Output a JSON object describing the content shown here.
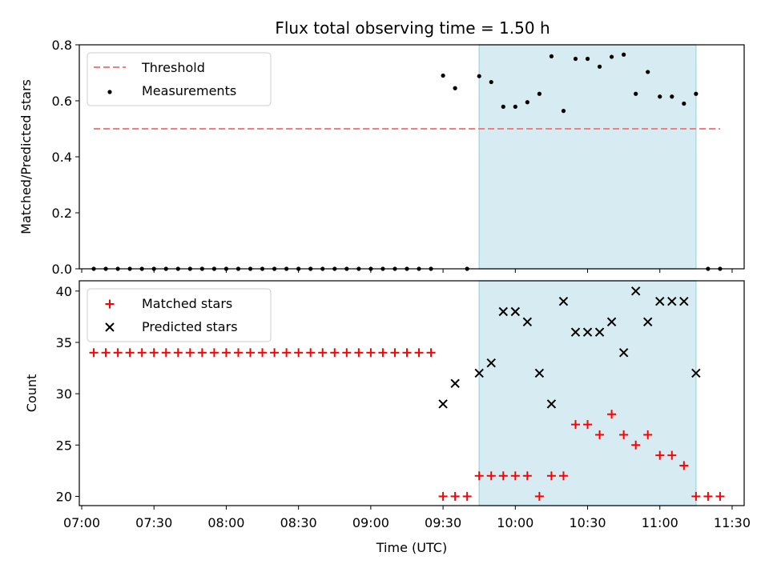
{
  "title": "Flux total observing time = 1.50 h",
  "colors": {
    "threshold": "#f08080",
    "measurement": "#000000",
    "matched": "#ff0000",
    "predicted": "#000000",
    "shade": "#add8e6"
  },
  "chart_data": [
    {
      "type": "scatter",
      "ylabel": "Matched/Predicted stars",
      "ylim": [
        0,
        0.8
      ],
      "yticks": [
        0.0,
        0.2,
        0.4,
        0.6,
        0.8
      ],
      "ytick_labels": [
        "0.0",
        "0.2",
        "0.4",
        "0.6",
        "0.8"
      ],
      "xlim": [
        "06:59",
        "11:35"
      ],
      "shaded_region": [
        "09:45",
        "11:15"
      ],
      "legend": "top-left",
      "threshold": {
        "name": "Threshold",
        "value": 0.5,
        "x": [
          "07:05",
          "11:25"
        ]
      },
      "series": [
        {
          "name": "Measurements",
          "points": [
            [
              "07:05",
              0.0
            ],
            [
              "07:10",
              0.0
            ],
            [
              "07:15",
              0.0
            ],
            [
              "07:20",
              0.0
            ],
            [
              "07:25",
              0.0
            ],
            [
              "07:30",
              0.0
            ],
            [
              "07:35",
              0.0
            ],
            [
              "07:40",
              0.0
            ],
            [
              "07:45",
              0.0
            ],
            [
              "07:50",
              0.0
            ],
            [
              "07:55",
              0.0
            ],
            [
              "08:00",
              0.0
            ],
            [
              "08:05",
              0.0
            ],
            [
              "08:10",
              0.0
            ],
            [
              "08:15",
              0.0
            ],
            [
              "08:20",
              0.0
            ],
            [
              "08:25",
              0.0
            ],
            [
              "08:30",
              0.0
            ],
            [
              "08:35",
              0.0
            ],
            [
              "08:40",
              0.0
            ],
            [
              "08:45",
              0.0
            ],
            [
              "08:50",
              0.0
            ],
            [
              "08:55",
              0.0
            ],
            [
              "09:00",
              0.0
            ],
            [
              "09:05",
              0.0
            ],
            [
              "09:10",
              0.0
            ],
            [
              "09:15",
              0.0
            ],
            [
              "09:20",
              0.0
            ],
            [
              "09:25",
              0.0
            ],
            [
              "09:30",
              0.69
            ],
            [
              "09:35",
              0.645
            ],
            [
              "09:40",
              0.0
            ],
            [
              "09:45",
              0.688
            ],
            [
              "09:50",
              0.667
            ],
            [
              "09:55",
              0.579
            ],
            [
              "10:00",
              0.579
            ],
            [
              "10:05",
              0.595
            ],
            [
              "10:10",
              0.625
            ],
            [
              "10:15",
              0.759
            ],
            [
              "10:20",
              0.564
            ],
            [
              "10:25",
              0.75
            ],
            [
              "10:30",
              0.75
            ],
            [
              "10:35",
              0.722
            ],
            [
              "10:40",
              0.757
            ],
            [
              "10:45",
              0.765
            ],
            [
              "10:50",
              0.625
            ],
            [
              "10:55",
              0.703
            ],
            [
              "11:00",
              0.615
            ],
            [
              "11:05",
              0.615
            ],
            [
              "11:10",
              0.59
            ],
            [
              "11:15",
              0.625
            ],
            [
              "11:20",
              0.0
            ],
            [
              "11:25",
              0.0
            ]
          ]
        }
      ]
    },
    {
      "type": "scatter",
      "xlabel": "Time (UTC)",
      "ylabel": "Count",
      "ylim": [
        19.1,
        41.0
      ],
      "yticks": [
        20,
        25,
        30,
        35,
        40
      ],
      "ytick_labels": [
        "20",
        "25",
        "30",
        "35",
        "40"
      ],
      "xlim": [
        "06:59",
        "11:35"
      ],
      "xticks": [
        "07:00",
        "07:30",
        "08:00",
        "08:30",
        "09:00",
        "09:30",
        "10:00",
        "10:30",
        "11:00",
        "11:30"
      ],
      "shaded_region": [
        "09:45",
        "11:15"
      ],
      "legend": "top-left",
      "series": [
        {
          "name": "Matched stars",
          "points": [
            [
              "07:05",
              34
            ],
            [
              "07:10",
              34
            ],
            [
              "07:15",
              34
            ],
            [
              "07:20",
              34
            ],
            [
              "07:25",
              34
            ],
            [
              "07:30",
              34
            ],
            [
              "07:35",
              34
            ],
            [
              "07:40",
              34
            ],
            [
              "07:45",
              34
            ],
            [
              "07:50",
              34
            ],
            [
              "07:55",
              34
            ],
            [
              "08:00",
              34
            ],
            [
              "08:05",
              34
            ],
            [
              "08:10",
              34
            ],
            [
              "08:15",
              34
            ],
            [
              "08:20",
              34
            ],
            [
              "08:25",
              34
            ],
            [
              "08:30",
              34
            ],
            [
              "08:35",
              34
            ],
            [
              "08:40",
              34
            ],
            [
              "08:45",
              34
            ],
            [
              "08:50",
              34
            ],
            [
              "08:55",
              34
            ],
            [
              "09:00",
              34
            ],
            [
              "09:05",
              34
            ],
            [
              "09:10",
              34
            ],
            [
              "09:15",
              34
            ],
            [
              "09:20",
              34
            ],
            [
              "09:25",
              34
            ],
            [
              "09:30",
              20
            ],
            [
              "09:35",
              20
            ],
            [
              "09:40",
              20
            ],
            [
              "09:45",
              22
            ],
            [
              "09:50",
              22
            ],
            [
              "09:55",
              22
            ],
            [
              "10:00",
              22
            ],
            [
              "10:05",
              22
            ],
            [
              "10:10",
              20
            ],
            [
              "10:15",
              22
            ],
            [
              "10:20",
              22
            ],
            [
              "10:25",
              27
            ],
            [
              "10:30",
              27
            ],
            [
              "10:35",
              26
            ],
            [
              "10:40",
              28
            ],
            [
              "10:45",
              26
            ],
            [
              "10:50",
              25
            ],
            [
              "10:55",
              26
            ],
            [
              "11:00",
              24
            ],
            [
              "11:05",
              24
            ],
            [
              "11:10",
              23
            ],
            [
              "11:15",
              20
            ],
            [
              "11:20",
              20
            ],
            [
              "11:25",
              20
            ]
          ]
        },
        {
          "name": "Predicted stars",
          "points": [
            [
              "09:30",
              29
            ],
            [
              "09:35",
              31
            ],
            [
              "09:45",
              32
            ],
            [
              "09:50",
              33
            ],
            [
              "09:55",
              38
            ],
            [
              "10:00",
              38
            ],
            [
              "10:05",
              37
            ],
            [
              "10:10",
              32
            ],
            [
              "10:15",
              29
            ],
            [
              "10:20",
              39
            ],
            [
              "10:25",
              36
            ],
            [
              "10:30",
              36
            ],
            [
              "10:35",
              36
            ],
            [
              "10:40",
              37
            ],
            [
              "10:45",
              34
            ],
            [
              "10:50",
              40
            ],
            [
              "10:55",
              37
            ],
            [
              "11:00",
              39
            ],
            [
              "11:05",
              39
            ],
            [
              "11:10",
              39
            ],
            [
              "11:15",
              32
            ]
          ]
        }
      ]
    }
  ]
}
